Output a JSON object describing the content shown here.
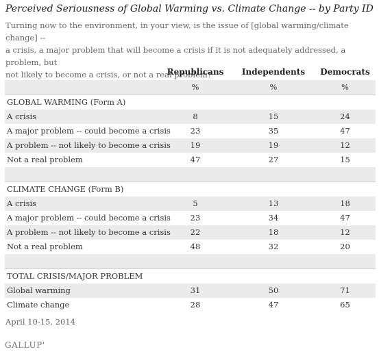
{
  "title": "Perceived Seriousness of Global Warming vs. Climate Change -- by Party ID",
  "question_lines": [
    "Turning now to the environment, in your view, is the issue of [global warming/climate change] --",
    "a crisis, a major problem that will become a crisis if it is not adequately addressed, a problem, but",
    "not likely to become a crisis, or not a real problem?"
  ],
  "columns": [
    "Republicans",
    "Independents",
    "Democrats"
  ],
  "unit": "%",
  "chart_data": {
    "type": "table",
    "title": "Perceived Seriousness of Global Warming vs. Climate Change -- by Party ID",
    "columns": [
      "Republicans",
      "Independents",
      "Democrats"
    ],
    "unit": "%",
    "sections": [
      {
        "name": "GLOBAL WARMING (Form A)",
        "rows": [
          {
            "label": "A crisis",
            "values": [
              8,
              15,
              24
            ]
          },
          {
            "label": "A major problem -- could become a crisis",
            "values": [
              23,
              35,
              47
            ]
          },
          {
            "label": "A problem -- not likely to become a crisis",
            "values": [
              19,
              19,
              12
            ]
          },
          {
            "label": "Not a real problem",
            "values": [
              47,
              27,
              15
            ]
          }
        ]
      },
      {
        "name": "CLIMATE CHANGE (Form B)",
        "rows": [
          {
            "label": "A crisis",
            "values": [
              5,
              13,
              18
            ]
          },
          {
            "label": "A major problem -- could become a crisis",
            "values": [
              23,
              34,
              47
            ]
          },
          {
            "label": "A problem -- not likely to become a crisis",
            "values": [
              22,
              18,
              12
            ]
          },
          {
            "label": "Not a real problem",
            "values": [
              48,
              32,
              20
            ]
          }
        ]
      },
      {
        "name": "TOTAL CRISIS/MAJOR PROBLEM",
        "rows": [
          {
            "label": "Global warming",
            "values": [
              31,
              50,
              71
            ]
          },
          {
            "label": "Climate change",
            "values": [
              28,
              47,
              65
            ]
          }
        ]
      }
    ]
  },
  "footnote": "April 10-15, 2014",
  "brand": "GALLUP",
  "brand_mark": "'"
}
